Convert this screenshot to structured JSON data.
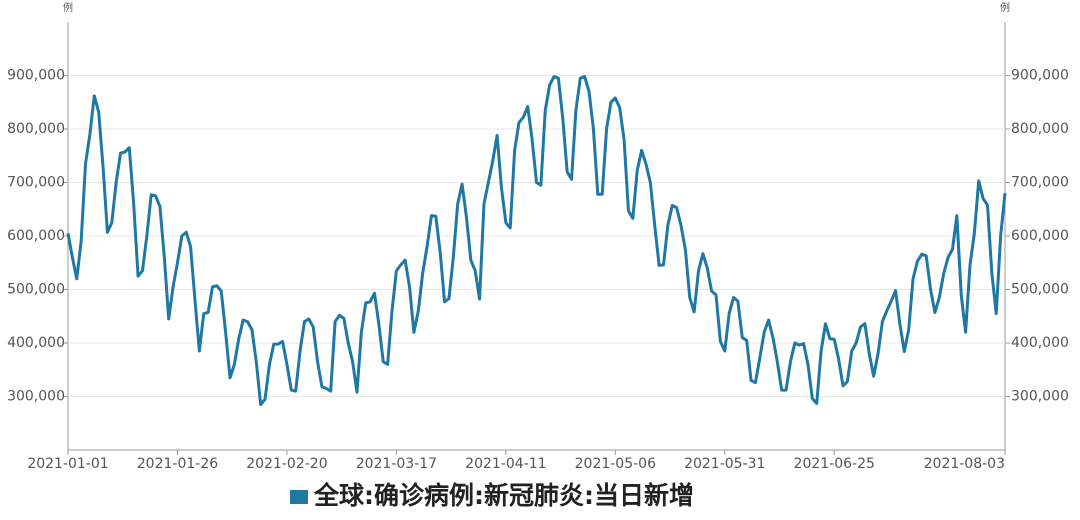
{
  "chart_data": {
    "type": "line",
    "y_unit": "例",
    "y2_unit": "例",
    "categories": [
      "2021-01-01",
      null,
      null,
      null,
      null,
      null,
      null,
      null,
      null,
      null,
      null,
      null,
      null,
      null,
      null,
      null,
      null,
      null,
      null,
      null,
      null,
      null,
      null,
      null,
      null,
      "2021-01-26",
      null,
      null,
      null,
      null,
      null,
      null,
      null,
      null,
      null,
      null,
      null,
      null,
      null,
      null,
      null,
      null,
      null,
      null,
      null,
      null,
      null,
      null,
      null,
      null,
      "2021-02-20",
      null,
      null,
      null,
      null,
      null,
      null,
      null,
      null,
      null,
      null,
      null,
      null,
      null,
      null,
      null,
      null,
      null,
      null,
      null,
      null,
      null,
      null,
      null,
      null,
      "2021-03-17",
      null,
      null,
      null,
      null,
      null,
      null,
      null,
      null,
      null,
      null,
      null,
      null,
      null,
      null,
      null,
      null,
      null,
      null,
      null,
      null,
      null,
      null,
      null,
      null,
      "2021-04-11",
      null,
      null,
      null,
      null,
      null,
      null,
      null,
      null,
      null,
      null,
      null,
      null,
      null,
      null,
      null,
      null,
      null,
      null,
      null,
      null,
      null,
      null,
      null,
      null,
      "2021-05-06",
      null,
      null,
      null,
      null,
      null,
      null,
      null,
      null,
      null,
      null,
      null,
      null,
      null,
      null,
      null,
      null,
      null,
      null,
      null,
      null,
      null,
      null,
      null,
      null,
      "2021-05-31",
      null,
      null,
      null,
      null,
      null,
      null,
      null,
      null,
      null,
      null,
      null,
      null,
      null,
      null,
      null,
      null,
      null,
      null,
      null,
      null,
      null,
      null,
      null,
      null,
      "2021-06-25",
      null,
      null,
      null,
      null,
      null,
      null,
      null,
      null,
      null,
      null,
      null,
      null,
      null,
      null,
      null,
      null,
      null,
      null,
      null,
      null,
      null,
      null,
      null,
      null,
      null,
      null,
      null,
      null,
      null,
      null,
      null,
      null,
      null,
      null,
      null,
      null,
      null,
      null,
      "2021-08-03"
    ],
    "series": [
      {
        "name": "全球:确诊病例:新冠肺炎:当日新增",
        "color": "#1f78a4",
        "values": [
          605000,
          560000,
          520000,
          590000,
          735000,
          790000,
          862000,
          832000,
          730000,
          607000,
          625000,
          700000,
          755000,
          757000,
          765000,
          660000,
          525000,
          535000,
          600000,
          677000,
          675000,
          655000,
          560000,
          445000,
          505000,
          550000,
          600000,
          607000,
          580000,
          480000,
          385000,
          455000,
          457000,
          505000,
          507000,
          497000,
          420000,
          335000,
          360000,
          408000,
          443000,
          440000,
          425000,
          365000,
          285000,
          295000,
          360000,
          398000,
          398000,
          403000,
          360000,
          312000,
          310000,
          385000,
          440000,
          445000,
          430000,
          365000,
          318000,
          315000,
          310000,
          440000,
          452000,
          446000,
          400000,
          365000,
          308000,
          420000,
          475000,
          477000,
          493000,
          435000,
          365000,
          360000,
          460000,
          535000,
          546000,
          555000,
          505000,
          420000,
          460000,
          530000,
          580000,
          638000,
          637000,
          570000,
          477000,
          483000,
          560000,
          660000,
          697000,
          635000,
          555000,
          535000,
          482000,
          660000,
          700000,
          740000,
          788000,
          690000,
          625000,
          615000,
          760000,
          812000,
          822000,
          842000,
          780000,
          700000,
          695000,
          835000,
          882000,
          898000,
          895000,
          820000,
          720000,
          706000,
          835000,
          895000,
          898000,
          870000,
          800000,
          678000,
          678000,
          800000,
          850000,
          858000,
          840000,
          780000,
          647000,
          633000,
          722000,
          760000,
          735000,
          700000,
          620000,
          545000,
          546000,
          620000,
          657000,
          653000,
          620000,
          575000,
          485000,
          458000,
          535000,
          567000,
          540000,
          497000,
          490000,
          403000,
          385000,
          455000,
          485000,
          478000,
          410000,
          405000,
          330000,
          326000,
          372000,
          420000,
          443000,
          410000,
          365000,
          312000,
          312000,
          365000,
          400000,
          396000,
          399000,
          360000,
          296000,
          287000,
          385000,
          436000,
          408000,
          407000,
          370000,
          320000,
          328000,
          385000,
          400000,
          430000,
          436000,
          380000,
          338000,
          380000,
          440000,
          460000,
          478000,
          498000,
          435000,
          384000,
          425000,
          520000,
          553000,
          566000,
          563000,
          500000,
          457000,
          485000,
          530000,
          560000,
          575000,
          638000,
          490000,
          420000,
          545000,
          605000,
          703000,
          670000,
          658000,
          530000,
          455000,
          600000,
          680000
        ]
      }
    ],
    "ylim": [
      200000,
      1000000
    ],
    "yticks": [
      {
        "value": 300000,
        "label": "300,000"
      },
      {
        "value": 400000,
        "label": "400,000"
      },
      {
        "value": 500000,
        "label": "500,000"
      },
      {
        "value": 600000,
        "label": "600,000"
      },
      {
        "value": 700000,
        "label": "700,000"
      },
      {
        "value": 800000,
        "label": "800,000"
      },
      {
        "value": 900000,
        "label": "900,000"
      }
    ],
    "y2lim": [
      200000,
      1000000
    ],
    "y2ticks": [
      {
        "value": 300000,
        "label": "300,000"
      },
      {
        "value": 400000,
        "label": "400,000"
      },
      {
        "value": 500000,
        "label": "500,000"
      },
      {
        "value": 600000,
        "label": "600,000"
      },
      {
        "value": 700000,
        "label": "700,000"
      },
      {
        "value": 800000,
        "label": "800,000"
      },
      {
        "value": 900000,
        "label": "900,000"
      }
    ],
    "grid": true,
    "legend": "bottom"
  }
}
